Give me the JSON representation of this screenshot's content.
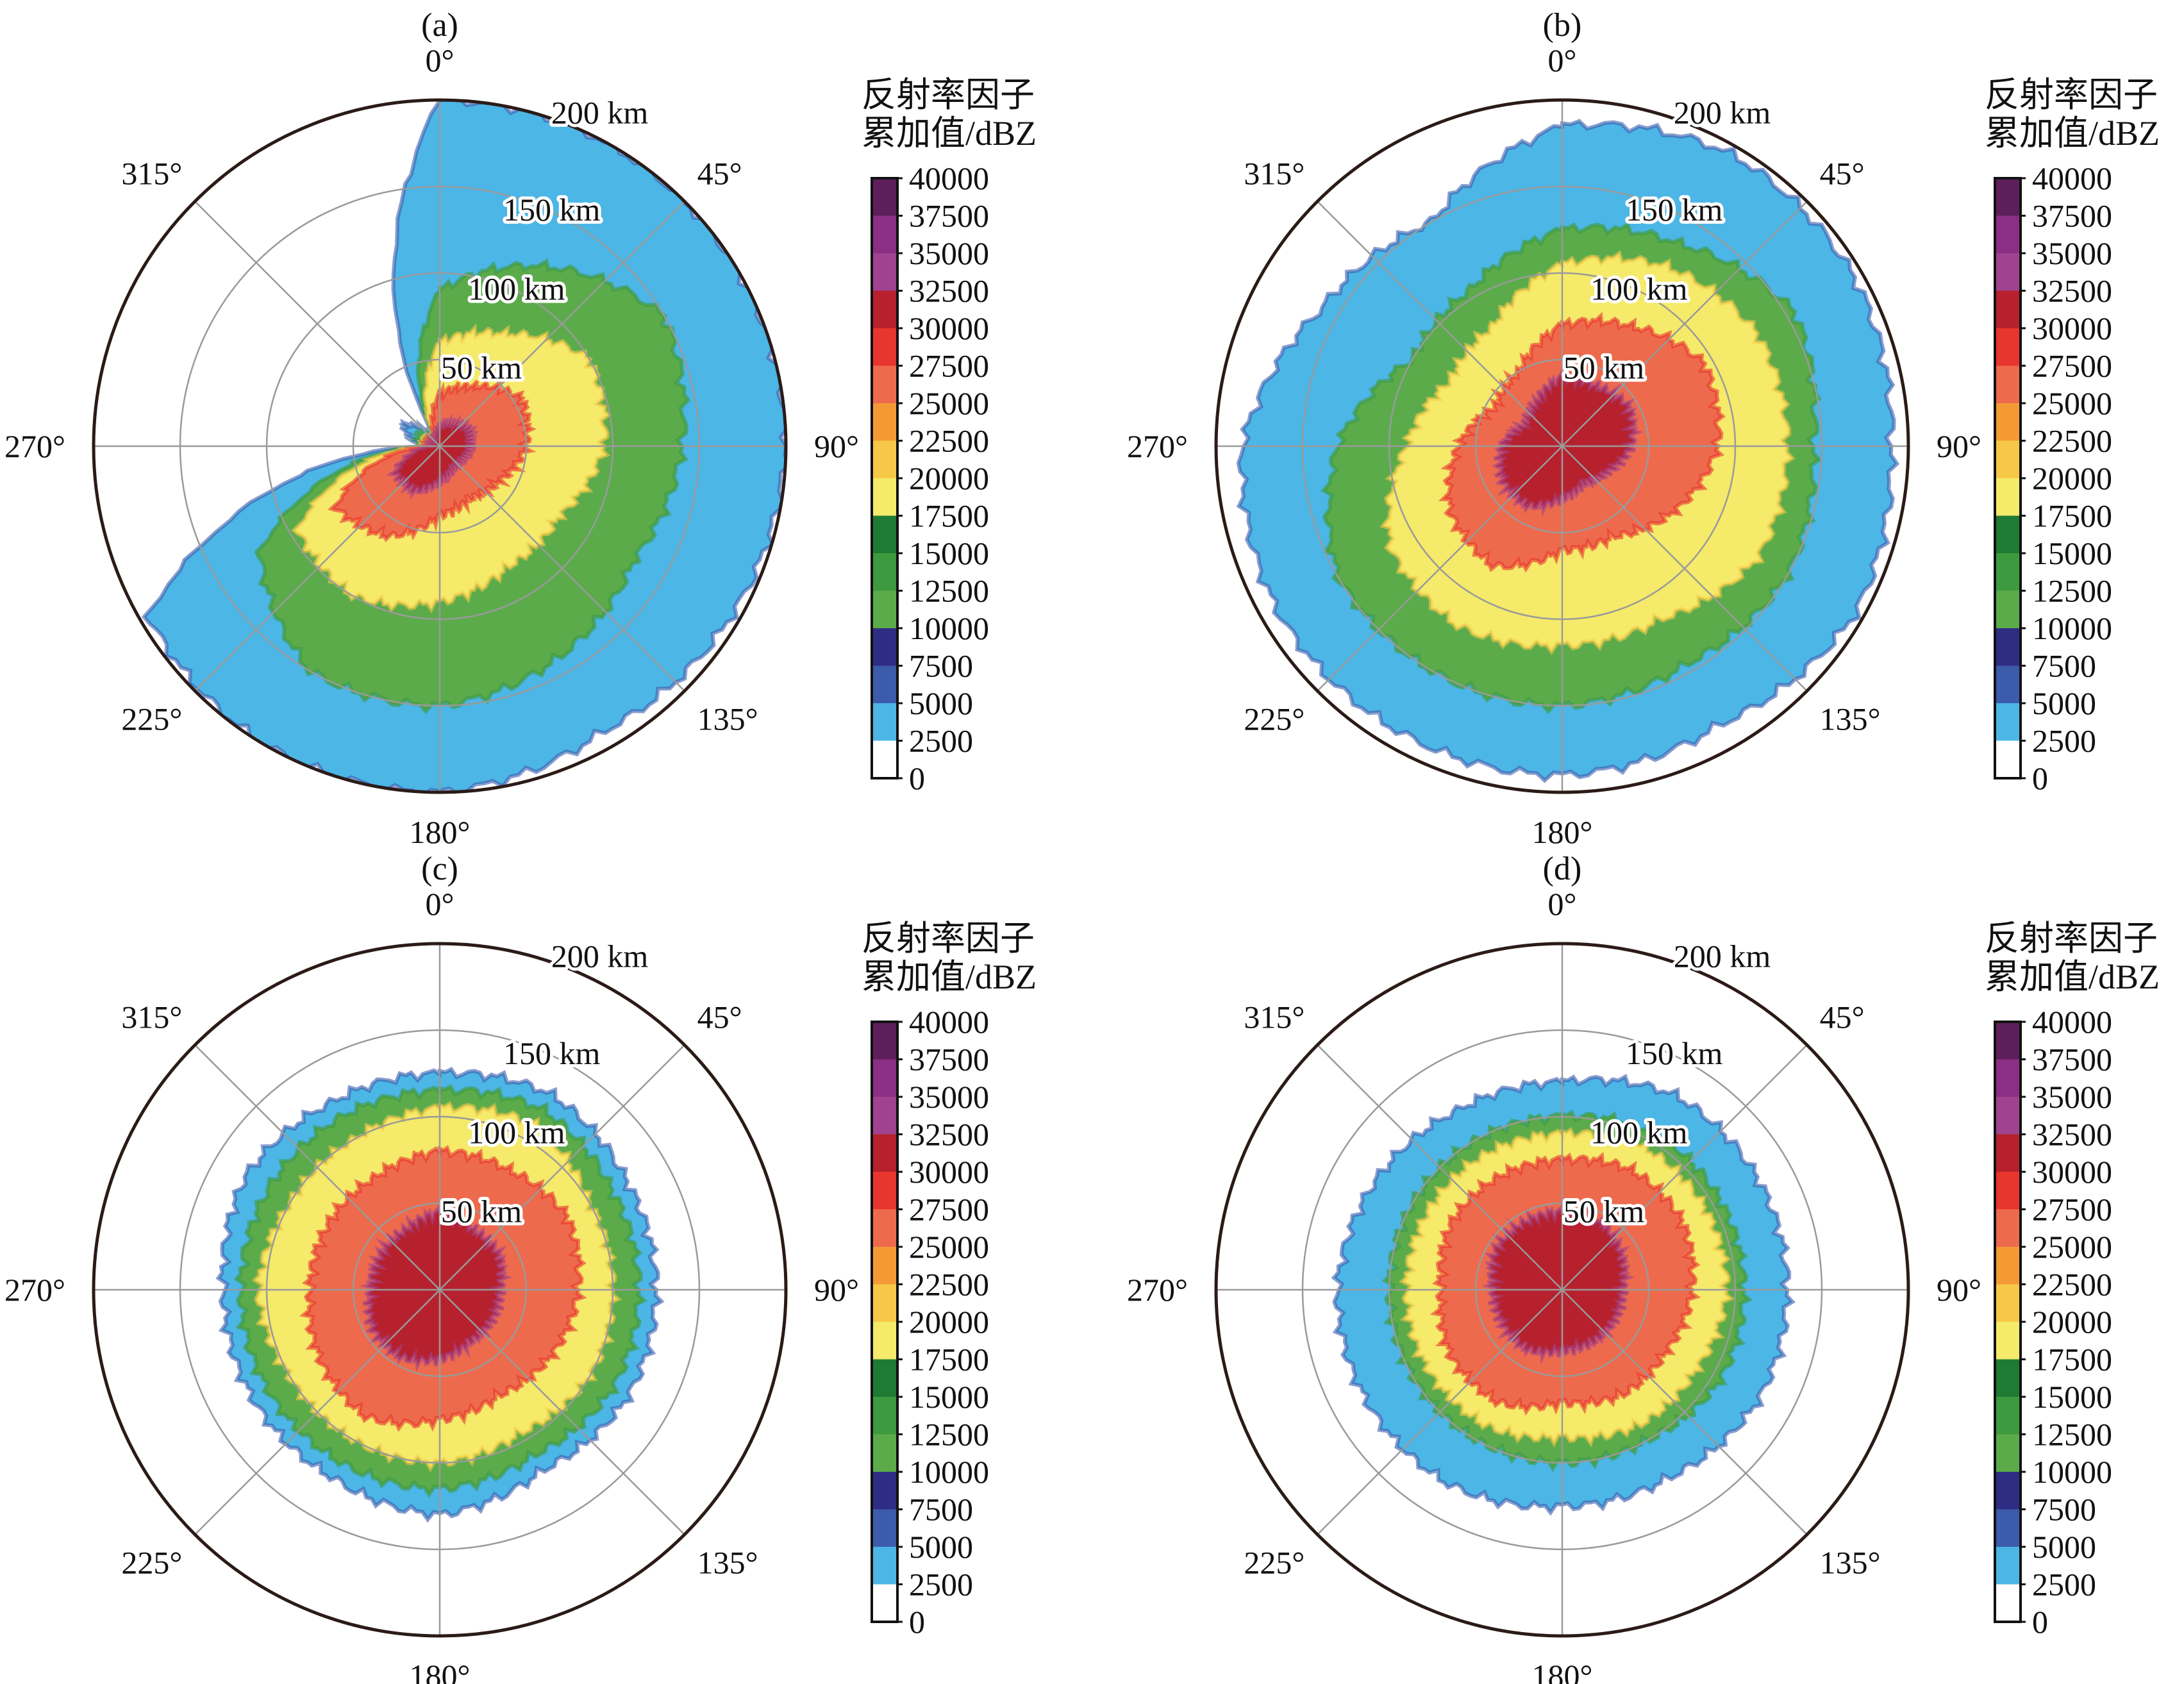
{
  "colors": {
    "levels": [
      "#ffffff",
      "#4cb6e6",
      "#3d5bab",
      "#2f2d83",
      "#5bab4b",
      "#3d9a3f",
      "#1f7a33",
      "#f5ea6a",
      "#f7c847",
      "#f39a35",
      "#ee6a4c",
      "#e8352e",
      "#b7212d",
      "#a0438f",
      "#8a2f84",
      "#5d1f59"
    ],
    "ring": "#9a9a9a",
    "outline": "#2b1b17"
  },
  "chart_data": [
    {
      "type": "heatmap",
      "title": "(a)",
      "projection": "polar",
      "angle_labels": [
        "0°",
        "45°",
        "90°",
        "135°",
        "180°",
        "225°",
        "270°",
        "315°"
      ],
      "range_labels": [
        "50 km",
        "100 km",
        "150 km",
        "200 km"
      ],
      "colorbar": {
        "title_line1": "反射率因子",
        "title_line2": "累加值/dBZ",
        "ticks": [
          "40000",
          "37500",
          "35000",
          "32500",
          "30000",
          "27500",
          "25000",
          "22500",
          "20000",
          "17500",
          "15000",
          "12500",
          "10000",
          "7500",
          "5000",
          "2500",
          "0"
        ],
        "vmin": 0,
        "vmax": 40000,
        "step": 2500
      },
      "envelope": {
        "azimuths_deg": [
          0,
          30,
          60,
          90,
          120,
          150,
          180,
          210,
          240,
          270,
          300,
          330
        ],
        "extent_km": {
          "2500": [
            200,
            200,
            200,
            200,
            195,
            190,
            200,
            200,
            195,
            10,
            25,
            5
          ],
          "10000": [
            90,
            120,
            150,
            140,
            130,
            140,
            150,
            150,
            120,
            10,
            15,
            5
          ],
          "17500": [
            60,
            75,
            100,
            95,
            80,
            80,
            90,
            100,
            95,
            10,
            10,
            5
          ],
          "25000": [
            30,
            40,
            55,
            50,
            40,
            35,
            40,
            60,
            70,
            8,
            8,
            5
          ],
          "32500": [
            12,
            15,
            20,
            18,
            15,
            15,
            20,
            30,
            30,
            6,
            6,
            5
          ]
        }
      }
    },
    {
      "type": "heatmap",
      "title": "(b)",
      "projection": "polar",
      "angle_labels": [
        "0°",
        "45°",
        "90°",
        "135°",
        "180°",
        "225°",
        "270°",
        "315°"
      ],
      "range_labels": [
        "50 km",
        "100 km",
        "150 km",
        "200 km"
      ],
      "colorbar": {
        "title_line1": "反射率因子",
        "title_line2": "累加值/dBZ",
        "ticks": [
          "40000",
          "37500",
          "35000",
          "32500",
          "30000",
          "27500",
          "25000",
          "22500",
          "20000",
          "17500",
          "15000",
          "12500",
          "10000",
          "7500",
          "5000",
          "2500",
          "0"
        ],
        "vmin": 0,
        "vmax": 40000,
        "step": 2500
      },
      "envelope": {
        "azimuths_deg": [
          0,
          30,
          60,
          90,
          120,
          150,
          180,
          210,
          240,
          270,
          300,
          330
        ],
        "extent_km": {
          "2500": [
            185,
            195,
            195,
            190,
            195,
            185,
            190,
            190,
            190,
            185,
            160,
            150
          ],
          "10000": [
            125,
            135,
            155,
            145,
            150,
            145,
            150,
            150,
            150,
            130,
            100,
            105
          ],
          "17500": [
            105,
            120,
            130,
            130,
            130,
            115,
            115,
            120,
            115,
            90,
            75,
            80
          ],
          "25000": [
            70,
            80,
            95,
            90,
            75,
            60,
            60,
            80,
            75,
            60,
            45,
            50
          ],
          "32500": [
            40,
            40,
            45,
            40,
            30,
            25,
            30,
            40,
            40,
            35,
            25,
            30
          ]
        }
      }
    },
    {
      "type": "heatmap",
      "title": "(c)",
      "projection": "polar",
      "angle_labels": [
        "0°",
        "45°",
        "90°",
        "135°",
        "180°",
        "225°",
        "270°",
        "315°"
      ],
      "range_labels": [
        "50 km",
        "100 km",
        "150 km",
        "200 km"
      ],
      "colorbar": {
        "title_line1": "反射率因子",
        "title_line2": "累加值/dBZ",
        "ticks": [
          "40000",
          "37500",
          "35000",
          "32500",
          "30000",
          "27500",
          "25000",
          "22500",
          "20000",
          "17500",
          "15000",
          "12500",
          "10000",
          "7500",
          "5000",
          "2500",
          "0"
        ],
        "vmin": 0,
        "vmax": 40000,
        "step": 2500
      },
      "envelope": {
        "azimuths_deg": [
          0,
          30,
          60,
          90,
          120,
          150,
          180,
          210,
          240,
          270,
          300,
          330
        ],
        "extent_km": {
          "2500": [
            125,
            130,
            125,
            125,
            125,
            120,
            130,
            125,
            125,
            125,
            130,
            125
          ],
          "10000": [
            115,
            120,
            115,
            115,
            115,
            110,
            115,
            115,
            115,
            115,
            115,
            115
          ],
          "17500": [
            105,
            110,
            100,
            100,
            100,
            95,
            100,
            100,
            100,
            105,
            100,
            100
          ],
          "25000": [
            80,
            80,
            85,
            80,
            75,
            70,
            75,
            85,
            80,
            75,
            75,
            75
          ],
          "32500": [
            45,
            40,
            40,
            35,
            35,
            35,
            40,
            45,
            45,
            40,
            40,
            40
          ]
        }
      }
    },
    {
      "type": "heatmap",
      "title": "(d)",
      "projection": "polar",
      "angle_labels": [
        "0°",
        "45°",
        "90°",
        "135°",
        "180°",
        "225°",
        "270°",
        "315°"
      ],
      "range_labels": [
        "50 km",
        "100 km",
        "150 km",
        "200 km"
      ],
      "colorbar": {
        "title_line1": "反射率因子",
        "title_line2": "累加值/dBZ",
        "ticks": [
          "40000",
          "37500",
          "35000",
          "32500",
          "30000",
          "27500",
          "25000",
          "22500",
          "20000",
          "17500",
          "15000",
          "12500",
          "10000",
          "7500",
          "5000",
          "2500",
          "0"
        ],
        "vmin": 0,
        "vmax": 40000,
        "step": 2500
      },
      "envelope": {
        "azimuths_deg": [
          0,
          30,
          60,
          90,
          120,
          150,
          180,
          210,
          240,
          270,
          300,
          330
        ],
        "extent_km": {
          "2500": [
            120,
            130,
            130,
            130,
            130,
            125,
            125,
            130,
            130,
            130,
            125,
            120
          ],
          "10000": [
            100,
            105,
            105,
            105,
            105,
            100,
            100,
            100,
            100,
            100,
            100,
            100
          ],
          "17500": [
            90,
            95,
            95,
            95,
            90,
            90,
            85,
            90,
            90,
            90,
            90,
            90
          ],
          "25000": [
            75,
            80,
            80,
            75,
            70,
            70,
            65,
            75,
            75,
            70,
            75,
            75
          ],
          "32500": [
            45,
            45,
            40,
            35,
            35,
            35,
            35,
            40,
            40,
            40,
            45,
            45
          ]
        }
      }
    }
  ]
}
